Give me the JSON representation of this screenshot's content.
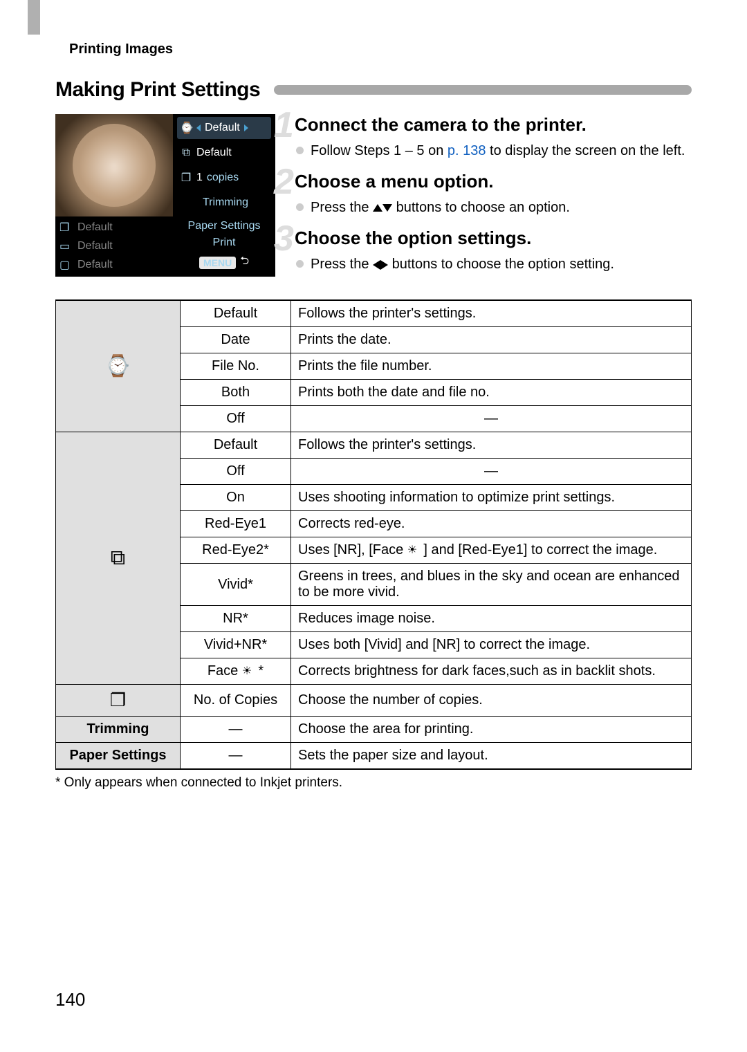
{
  "header": {
    "label": "Printing Images"
  },
  "section": {
    "title": "Making Print Settings"
  },
  "lcd": {
    "row_default": "Default",
    "row_default2": "Default",
    "copies_value": "1",
    "copies_label": "copies",
    "trimming": "Trimming",
    "left_default1": "Default",
    "left_default2": "Default",
    "left_default3": "Default",
    "paper_settings": "Paper Settings",
    "print": "Print",
    "menu": "MENU"
  },
  "steps": [
    {
      "num": "1",
      "title": "Connect the camera to the printer.",
      "bullet_pre": "Follow Steps 1 – 5 on ",
      "link": "p. 138",
      "bullet_post": " to display the screen on the left."
    },
    {
      "num": "2",
      "title": "Choose a menu option.",
      "bullet_pre": "Press the ",
      "bullet_post": " buttons to choose an option."
    },
    {
      "num": "3",
      "title": "Choose the option settings.",
      "bullet_pre": "Press the ",
      "bullet_post": " buttons to choose the option setting."
    }
  ],
  "table": {
    "group1": [
      {
        "opt": "Default",
        "desc": "Follows the printer's settings."
      },
      {
        "opt": "Date",
        "desc": "Prints the date."
      },
      {
        "opt": "File No.",
        "desc": "Prints the file number."
      },
      {
        "opt": "Both",
        "desc": "Prints both the date and file no."
      },
      {
        "opt": "Off",
        "desc": "—"
      }
    ],
    "group2": [
      {
        "opt": "Default",
        "desc": "Follows the printer's settings."
      },
      {
        "opt": "Off",
        "desc": "—"
      },
      {
        "opt": "On",
        "desc": "Uses shooting information to optimize print settings."
      },
      {
        "opt": "Red-Eye1",
        "desc": "Corrects red-eye."
      },
      {
        "opt": "Red-Eye2*",
        "desc_pre": "Uses [NR], [Face ",
        "desc_post": " ] and [Red-Eye1] to correct the image."
      },
      {
        "opt": "Vivid*",
        "desc": "Greens in trees, and blues in the sky and ocean are enhanced to be more vivid."
      },
      {
        "opt": "NR*",
        "desc": "Reduces image noise."
      },
      {
        "opt": "Vivid+NR*",
        "desc": "Uses both [Vivid] and [NR] to correct the image."
      },
      {
        "opt_pre": "Face ",
        "opt_post": " *",
        "desc": "Corrects brightness for dark faces,such as in backlit shots."
      }
    ],
    "copies": {
      "opt": "No. of Copies",
      "desc": "Choose the number of copies."
    },
    "trimming": {
      "label": "Trimming",
      "opt": "—",
      "desc": "Choose the area for printing."
    },
    "paper": {
      "label": "Paper Settings",
      "opt": "—",
      "desc": "Sets the paper size and layout."
    }
  },
  "footnote": "*  Only appears when connected to Inkjet printers.",
  "page_number": "140"
}
